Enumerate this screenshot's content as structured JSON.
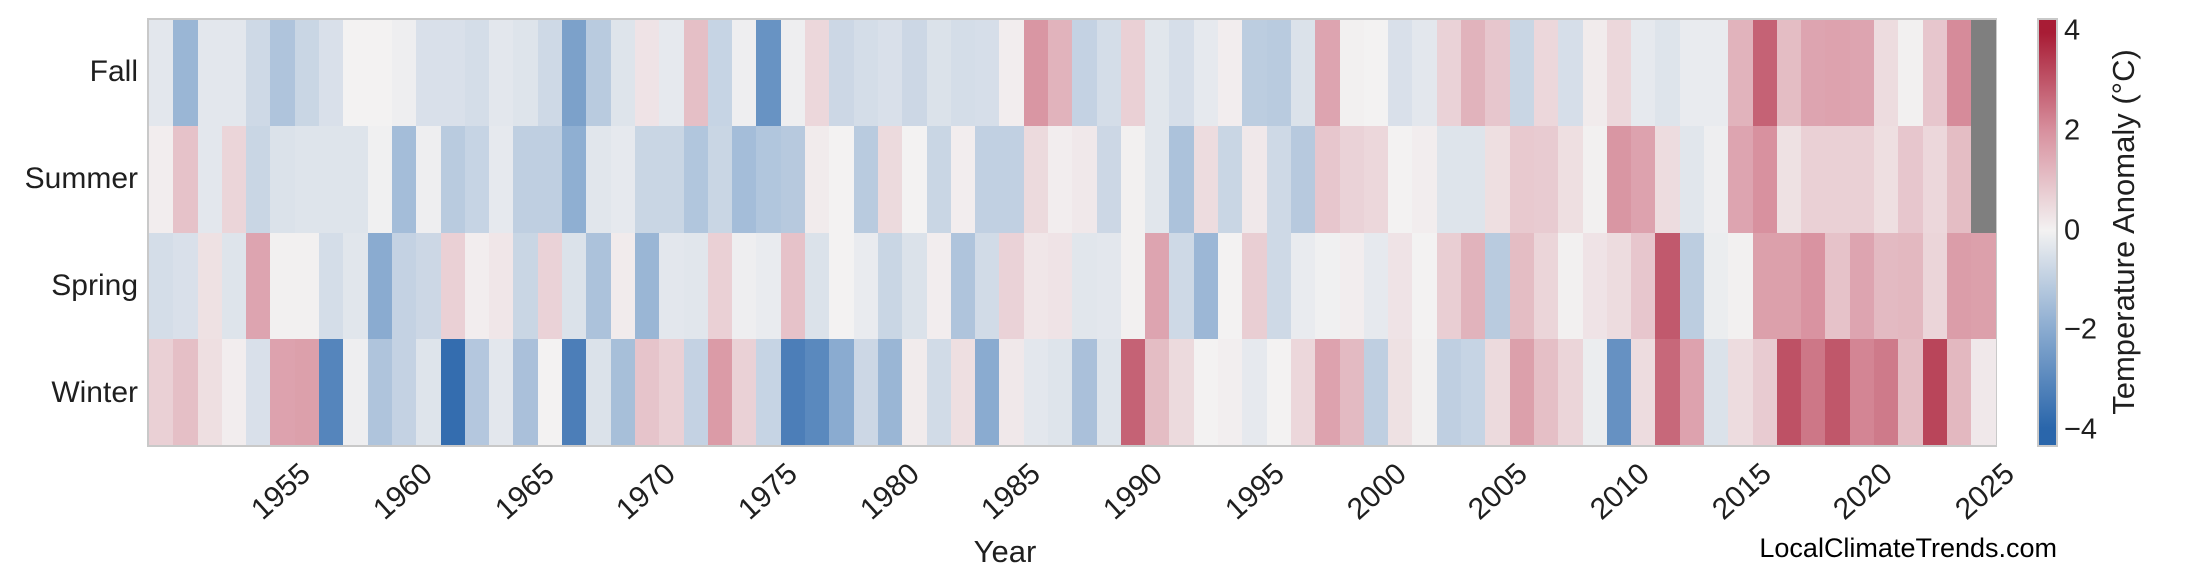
{
  "watermark": "LocalClimateTrends.com",
  "chart_data": {
    "type": "heatmap",
    "xlabel": "Year",
    "x_start": 1950,
    "x_end": 2025,
    "x_ticks": [
      1955,
      1960,
      1965,
      1970,
      1975,
      1980,
      1985,
      1990,
      1995,
      2000,
      2005,
      2010,
      2015,
      2020,
      2025
    ],
    "rows": [
      "Fall",
      "Summer",
      "Spring",
      "Winter"
    ],
    "series": [
      {
        "name": "Fall",
        "values": [
          -0.3,
          -1.7,
          -0.3,
          -0.3,
          -0.7,
          -1.3,
          -0.8,
          -0.5,
          0,
          0,
          -0.1,
          -0.5,
          -0.5,
          -0.6,
          -0.3,
          -0.4,
          -0.7,
          -2.3,
          -1.1,
          -0.4,
          0.3,
          -0.25,
          1.05,
          -0.85,
          -0.1,
          -2.7,
          -0.1,
          0.55,
          -0.75,
          -0.6,
          -0.5,
          -0.75,
          -0.45,
          -0.6,
          -0.55,
          0.1,
          1.9,
          1.3,
          -0.9,
          -0.6,
          0.7,
          -0.35,
          -0.55,
          -0.25,
          0.1,
          -1.05,
          -1.1,
          -0.45,
          1.6,
          0.05,
          0,
          -0.5,
          -0.3,
          0.65,
          1.3,
          0.9,
          -0.8,
          0.55,
          -0.55,
          0.15,
          0.55,
          -0.25,
          -0.4,
          -0.2,
          -0.2,
          1.3,
          2.8,
          1.1,
          1.6,
          1.65,
          1.6,
          0.45,
          0.05,
          0.9,
          2.1,
          null
        ]
      },
      {
        "name": "Summer",
        "values": [
          0.1,
          1.0,
          -0.3,
          0.6,
          -0.8,
          -0.45,
          -0.4,
          -0.4,
          -0.4,
          -0.05,
          -1.5,
          -0.1,
          -1.1,
          -0.85,
          -0.25,
          -1.0,
          -1.0,
          -1.9,
          -0.35,
          -0.25,
          -0.8,
          -0.8,
          -1.25,
          -0.8,
          -1.5,
          -1.25,
          -1.15,
          0.15,
          0,
          -1.1,
          0.5,
          0,
          -0.8,
          0.1,
          -0.95,
          -0.95,
          0.5,
          0.1,
          0.2,
          -0.75,
          0.05,
          -0.35,
          -1.35,
          0.45,
          -0.8,
          0.2,
          -0.7,
          -1.15,
          0.9,
          0.65,
          0.55,
          0,
          0.1,
          -0.4,
          -0.4,
          0.4,
          0.85,
          0.8,
          0.4,
          0.05,
          1.9,
          1.65,
          0.45,
          -0.35,
          -0.1,
          1.6,
          2.0,
          0.35,
          0.7,
          0.7,
          0.7,
          0.4,
          0.9,
          0.55,
          1.1,
          null
        ]
      },
      {
        "name": "Spring",
        "values": [
          -0.6,
          -0.5,
          0.35,
          -0.4,
          1.6,
          0.05,
          0.05,
          -0.6,
          -0.35,
          -2.0,
          -0.9,
          -0.75,
          0.7,
          0.1,
          0.25,
          -0.8,
          0.65,
          -0.45,
          -1.35,
          0.15,
          -1.7,
          -0.3,
          -0.35,
          0.7,
          -0.1,
          -0.2,
          1.0,
          -0.45,
          0,
          -0.2,
          -0.8,
          -0.45,
          0.1,
          -1.3,
          -0.65,
          0.65,
          0.25,
          0.3,
          -0.35,
          -0.3,
          0.05,
          1.6,
          -0.7,
          -1.65,
          0,
          0.75,
          -0.7,
          -0.2,
          -0.05,
          0.1,
          -0.25,
          0.3,
          0,
          0.75,
          1.3,
          -1.1,
          1.1,
          0.6,
          0.05,
          0.3,
          0.45,
          0.9,
          2.95,
          -1.05,
          -0.15,
          0.05,
          1.7,
          1.7,
          1.95,
          1.0,
          1.6,
          1.15,
          1.2,
          0.6,
          1.75,
          1.7
        ]
      },
      {
        "name": "Winter",
        "values": [
          0.7,
          1.05,
          0.4,
          0.1,
          -0.5,
          1.65,
          1.7,
          -3.1,
          -0.1,
          -1.3,
          -0.9,
          -0.4,
          -3.8,
          -1.2,
          -0.3,
          -1.4,
          0,
          -3.3,
          -0.45,
          -1.45,
          0.95,
          0.7,
          -0.9,
          1.8,
          0.68,
          -0.85,
          -3.3,
          -3.0,
          -2.0,
          -0.75,
          -1.7,
          0.15,
          -0.65,
          0.4,
          -2.0,
          0.2,
          -0.3,
          -0.4,
          -1.4,
          -0.4,
          2.8,
          1.1,
          0.5,
          0,
          0.08,
          -0.25,
          0,
          0.55,
          1.65,
          1.15,
          -1.0,
          0.35,
          0.05,
          -1.0,
          -0.85,
          0.5,
          1.7,
          1.05,
          0.6,
          -0.15,
          -2.75,
          0.45,
          2.7,
          1.65,
          -0.45,
          0.45,
          0.8,
          3.1,
          2.45,
          3.0,
          2.2,
          2.4,
          1.1,
          3.3,
          1.2,
          0.2
        ]
      }
    ],
    "missing_value_color": "#7f7f7f",
    "missing_cells": [
      [
        "Fall",
        2025
      ],
      [
        "Summer",
        2025
      ]
    ],
    "colorbar": {
      "label": "Temperature Anomaly (°C)",
      "min": -4,
      "max": 4,
      "ticks": [
        4,
        2,
        0,
        -2,
        -4
      ],
      "tick_labels": [
        "4",
        "2",
        "0",
        "−2",
        "−4"
      ],
      "stops": [
        {
          "v": -4,
          "c": "#2a66ab"
        },
        {
          "v": -2,
          "c": "#8aabd0"
        },
        {
          "v": 0,
          "c": "#f3f2f2"
        },
        {
          "v": 2,
          "c": "#d8919f"
        },
        {
          "v": 4,
          "c": "#a81c35"
        }
      ]
    }
  }
}
